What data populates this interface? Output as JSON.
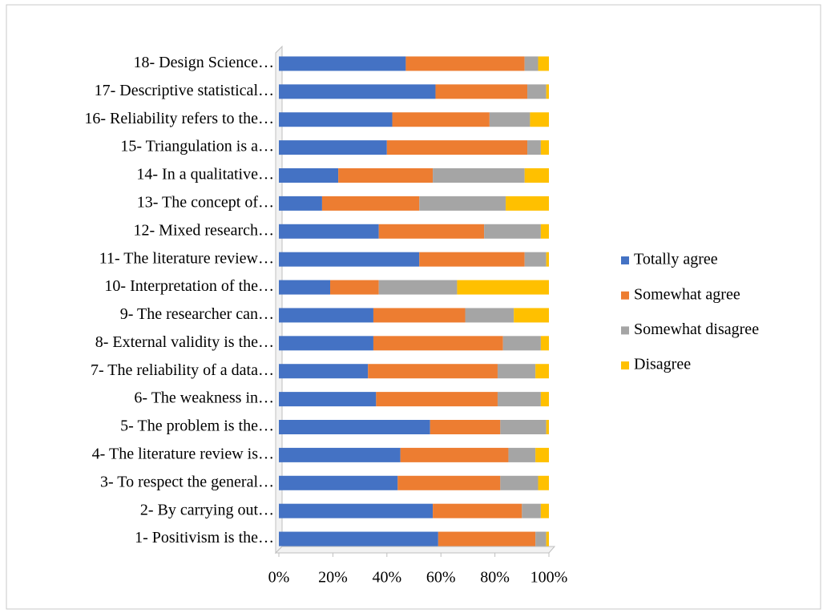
{
  "chart_data": {
    "type": "stacked_barh",
    "categories": [
      "1- Positivism is the…",
      "2- By carrying out…",
      "3- To respect the general…",
      "4- The literature review is…",
      "5- The problem is the…",
      "6- The weakness in…",
      "7- The reliability of a data…",
      "8- External validity is the…",
      "9- The researcher can…",
      "10- Interpretation of the…",
      "11- The literature review…",
      "12- Mixed research…",
      "13- The concept of…",
      "14- In a qualitative…",
      "15- Triangulation is a…",
      "16- Reliability refers to the…",
      "17- Descriptive statistical…",
      "18- Design Science…"
    ],
    "series": [
      {
        "name": "Totally agree",
        "color": "#4472c4",
        "values": [
          59,
          57,
          44,
          45,
          56,
          36,
          33,
          35,
          35,
          19,
          52,
          37,
          16,
          22,
          40,
          42,
          58,
          47
        ]
      },
      {
        "name": "Somewhat agree",
        "color": "#ed7d31",
        "values": [
          36,
          33,
          38,
          40,
          26,
          45,
          48,
          48,
          34,
          18,
          39,
          39,
          36,
          35,
          52,
          36,
          34,
          44
        ]
      },
      {
        "name": "Somewhat disagree",
        "color": "#a5a5a5",
        "values": [
          4,
          7,
          14,
          10,
          17,
          16,
          14,
          14,
          18,
          29,
          8,
          21,
          32,
          34,
          5,
          15,
          7,
          5
        ]
      },
      {
        "name": "Disagree",
        "color": "#ffc000",
        "values": [
          1,
          3,
          4,
          5,
          1,
          3,
          5,
          3,
          13,
          34,
          1,
          3,
          16,
          9,
          3,
          7,
          1,
          4
        ]
      }
    ],
    "xlim": [
      0,
      100
    ],
    "xticks": [
      {
        "value": 0,
        "label": "0%"
      },
      {
        "value": 20,
        "label": "20%"
      },
      {
        "value": 40,
        "label": "40%"
      },
      {
        "value": 60,
        "label": "60%"
      },
      {
        "value": 80,
        "label": "80%"
      },
      {
        "value": 100,
        "label": "100%"
      }
    ],
    "legend": "right"
  }
}
